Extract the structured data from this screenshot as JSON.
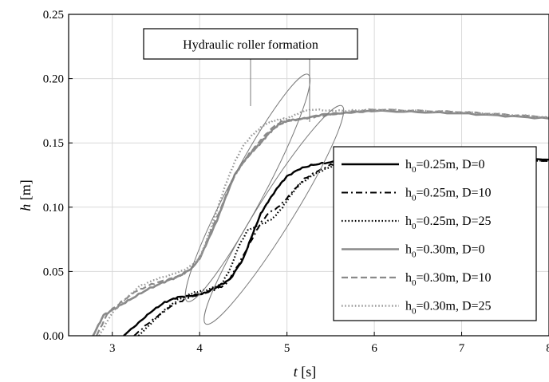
{
  "chart_data": {
    "type": "line",
    "xlabel_italic": "t",
    "xlabel_unit": " [s]",
    "ylabel_italic": "h",
    "ylabel_unit": " [m]",
    "xlim": [
      2.5,
      8
    ],
    "ylim": [
      0,
      0.25
    ],
    "xticks": [
      3,
      4,
      5,
      6,
      7,
      8
    ],
    "xtick_labels": [
      "3",
      "4",
      "5",
      "6",
      "7",
      "8"
    ],
    "yticks": [
      0,
      0.05,
      0.1,
      0.15,
      0.2,
      0.25
    ],
    "ytick_labels": [
      "0.00",
      "0.05",
      "0.10",
      "0.15",
      "0.20",
      "0.25"
    ],
    "grid": true,
    "legend_position": "right",
    "annotation": {
      "text": "Hydraulic roller formation",
      "ellipses": [
        {
          "cx": 4.55,
          "cy": 0.115,
          "rx": 0.95,
          "ry": 0.022,
          "angle_deg": -62
        },
        {
          "cx": 4.85,
          "cy": 0.094,
          "rx": 0.95,
          "ry": 0.022,
          "angle_deg": -58
        }
      ]
    },
    "series": [
      {
        "name_base": "h",
        "name_sub": "0",
        "name_rest": "=0.25m, D=0",
        "color": "#000000",
        "dash": "",
        "width": 2.4,
        "x": [
          3.13,
          3.3,
          3.45,
          3.6,
          3.75,
          3.9,
          4.05,
          4.2,
          4.35,
          4.5,
          4.6,
          4.7,
          4.8,
          4.9,
          5.0,
          5.15,
          5.3,
          5.5,
          5.7,
          6.0,
          6.5,
          7.0,
          7.5,
          8.0
        ],
        "y": [
          0.0,
          0.01,
          0.019,
          0.026,
          0.03,
          0.031,
          0.033,
          0.038,
          0.044,
          0.06,
          0.078,
          0.095,
          0.106,
          0.116,
          0.124,
          0.13,
          0.133,
          0.135,
          0.136,
          0.137,
          0.138,
          0.139,
          0.138,
          0.137
        ]
      },
      {
        "name_base": "h",
        "name_sub": "0",
        "name_rest": "=0.25m, D=10",
        "color": "#000000",
        "dash": "8,4,2,4",
        "width": 2.0,
        "x": [
          3.25,
          3.4,
          3.55,
          3.7,
          3.85,
          4.0,
          4.15,
          4.3,
          4.45,
          4.6,
          4.7,
          4.8,
          4.9,
          5.0,
          5.1,
          5.2,
          5.35,
          5.5,
          5.7,
          6.0,
          6.5,
          7.0,
          7.5,
          8.0
        ],
        "y": [
          0.0,
          0.009,
          0.017,
          0.024,
          0.029,
          0.032,
          0.035,
          0.04,
          0.056,
          0.075,
          0.088,
          0.096,
          0.1,
          0.107,
          0.115,
          0.122,
          0.128,
          0.133,
          0.135,
          0.137,
          0.138,
          0.139,
          0.137,
          0.136
        ]
      },
      {
        "name_base": "h",
        "name_sub": "0",
        "name_rest": "=0.25m, D=25",
        "color": "#000000",
        "dash": "1.6,2.6",
        "width": 2.2,
        "x": [
          3.3,
          3.45,
          3.6,
          3.75,
          3.85,
          3.95,
          4.1,
          4.25,
          4.35,
          4.45,
          4.55,
          4.65,
          4.75,
          4.85,
          4.95,
          5.05,
          5.15,
          5.3,
          5.45,
          5.6,
          6.0,
          6.5,
          7.0,
          7.5,
          8.0
        ],
        "y": [
          0.0,
          0.01,
          0.02,
          0.028,
          0.031,
          0.034,
          0.036,
          0.04,
          0.052,
          0.07,
          0.082,
          0.085,
          0.088,
          0.092,
          0.1,
          0.11,
          0.118,
          0.125,
          0.13,
          0.134,
          0.137,
          0.138,
          0.139,
          0.138,
          0.136
        ]
      },
      {
        "name_base": "h",
        "name_sub": "0",
        "name_rest": "=0.30m, D=0",
        "color": "#8a8a8a",
        "dash": "",
        "width": 2.6,
        "x": [
          2.78,
          2.9,
          3.05,
          3.2,
          3.4,
          3.6,
          3.75,
          3.9,
          4.0,
          4.1,
          4.2,
          4.3,
          4.4,
          4.5,
          4.6,
          4.7,
          4.8,
          4.9,
          5.0,
          5.2,
          5.4,
          5.6,
          5.8,
          6.0,
          6.5,
          7.0,
          7.5,
          8.0
        ],
        "y": [
          0.0,
          0.016,
          0.022,
          0.028,
          0.036,
          0.042,
          0.046,
          0.052,
          0.06,
          0.075,
          0.09,
          0.108,
          0.125,
          0.135,
          0.143,
          0.15,
          0.158,
          0.164,
          0.167,
          0.169,
          0.172,
          0.173,
          0.174,
          0.175,
          0.174,
          0.173,
          0.171,
          0.169
        ]
      },
      {
        "name_base": "h",
        "name_sub": "0",
        "name_rest": "=0.30m, D=10",
        "color": "#8a8a8a",
        "dash": "8,4",
        "width": 2.2,
        "x": [
          2.82,
          2.95,
          3.1,
          3.25,
          3.45,
          3.65,
          3.8,
          3.95,
          4.05,
          4.15,
          4.25,
          4.35,
          4.45,
          4.55,
          4.65,
          4.75,
          4.85,
          4.95,
          5.1,
          5.3,
          5.5,
          5.7,
          6.0,
          6.5,
          7.0,
          7.5,
          8.0
        ],
        "y": [
          0.0,
          0.018,
          0.026,
          0.034,
          0.04,
          0.044,
          0.047,
          0.055,
          0.068,
          0.085,
          0.1,
          0.118,
          0.13,
          0.14,
          0.148,
          0.156,
          0.163,
          0.167,
          0.168,
          0.17,
          0.172,
          0.174,
          0.176,
          0.175,
          0.174,
          0.172,
          0.17
        ]
      },
      {
        "name_base": "h",
        "name_sub": "0",
        "name_rest": "=0.30m, D=25",
        "color": "#9a9a9a",
        "dash": "1.6,2.6",
        "width": 2.4,
        "x": [
          2.85,
          3.0,
          3.15,
          3.3,
          3.5,
          3.7,
          3.85,
          4.0,
          4.1,
          4.2,
          4.3,
          4.4,
          4.5,
          4.6,
          4.7,
          4.8,
          4.9,
          5.0,
          5.1,
          5.2,
          5.3,
          5.5,
          5.7,
          6.0,
          6.5,
          7.0,
          7.5,
          8.0
        ],
        "y": [
          0.0,
          0.018,
          0.028,
          0.038,
          0.044,
          0.048,
          0.052,
          0.06,
          0.078,
          0.098,
          0.118,
          0.135,
          0.148,
          0.156,
          0.162,
          0.166,
          0.168,
          0.169,
          0.172,
          0.175,
          0.176,
          0.175,
          0.175,
          0.176,
          0.175,
          0.174,
          0.172,
          0.17
        ]
      }
    ]
  }
}
